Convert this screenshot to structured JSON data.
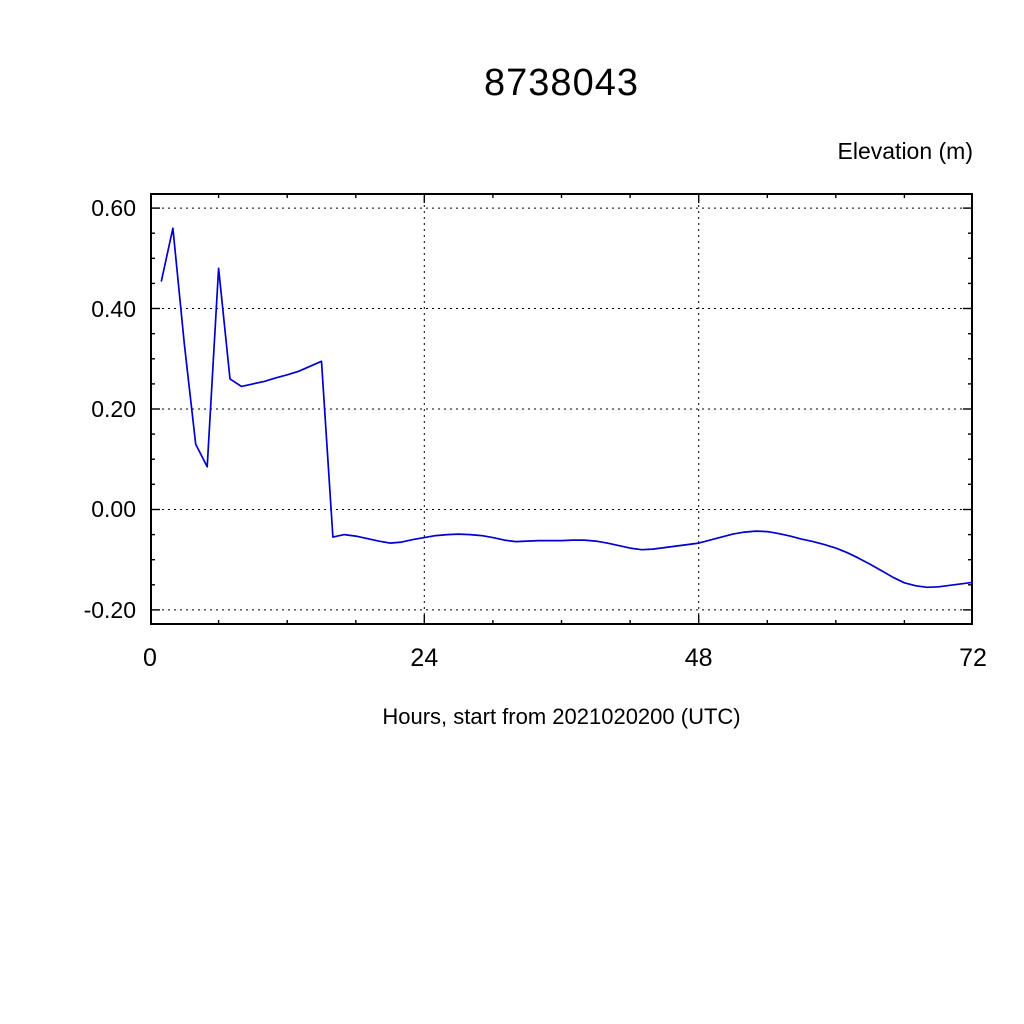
{
  "chart_data": {
    "type": "line",
    "title": "8738043",
    "ylabel": "Elevation (m)",
    "xlabel": "Hours, start from 2021020200 (UTC)",
    "xlim": [
      0,
      72
    ],
    "ylim": [
      -0.23,
      0.63
    ],
    "x_major_ticks": [
      0,
      24,
      48,
      72
    ],
    "x_tick_labels": [
      "0",
      "24",
      "48",
      "72"
    ],
    "x_grid_ticks": [
      24,
      48
    ],
    "x_minor_step": 6,
    "y_major_ticks": [
      0.6,
      0.4,
      0.2,
      0.0,
      -0.2
    ],
    "y_tick_labels": [
      "0.60",
      "0.40",
      "0.20",
      "0.00",
      "-0.20"
    ],
    "y_minor_step": 0.05,
    "grid": "dashed",
    "legend_position": "none",
    "line_color": "#0000cc",
    "series": [
      {
        "name": "elevation",
        "x": [
          1,
          2,
          3,
          4,
          5,
          6,
          7,
          8,
          9,
          10,
          11,
          12,
          13,
          14,
          15,
          16,
          17,
          18,
          19,
          20,
          21,
          22,
          23,
          24,
          25,
          26,
          27,
          28,
          29,
          30,
          31,
          32,
          33,
          34,
          35,
          36,
          37,
          38,
          39,
          40,
          41,
          42,
          43,
          44,
          45,
          46,
          47,
          48,
          49,
          50,
          51,
          52,
          53,
          54,
          55,
          56,
          57,
          58,
          59,
          60,
          61,
          62,
          63,
          64,
          65,
          66,
          67,
          68,
          69,
          70,
          71,
          72
        ],
        "y": [
          0.455,
          0.56,
          0.33,
          0.13,
          0.085,
          0.48,
          0.26,
          0.245,
          0.25,
          0.255,
          0.262,
          0.268,
          0.275,
          0.285,
          0.295,
          -0.055,
          -0.05,
          -0.053,
          -0.058,
          -0.063,
          -0.067,
          -0.065,
          -0.06,
          -0.056,
          -0.052,
          -0.05,
          -0.049,
          -0.05,
          -0.052,
          -0.056,
          -0.061,
          -0.064,
          -0.063,
          -0.062,
          -0.062,
          -0.062,
          -0.061,
          -0.061,
          -0.063,
          -0.067,
          -0.072,
          -0.077,
          -0.08,
          -0.079,
          -0.076,
          -0.073,
          -0.07,
          -0.067,
          -0.061,
          -0.055,
          -0.049,
          -0.045,
          -0.043,
          -0.044,
          -0.048,
          -0.053,
          -0.059,
          -0.064,
          -0.07,
          -0.077,
          -0.086,
          -0.097,
          -0.109,
          -0.122,
          -0.135,
          -0.146,
          -0.152,
          -0.155,
          -0.154,
          -0.151,
          -0.148,
          -0.145
        ]
      }
    ]
  }
}
